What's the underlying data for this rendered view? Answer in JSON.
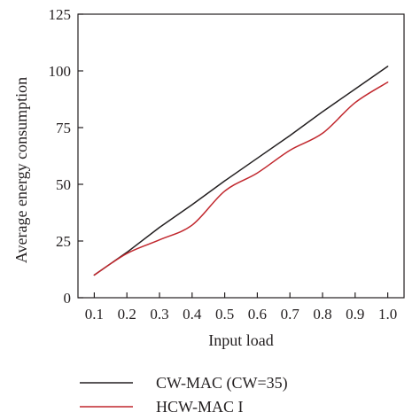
{
  "chart_data": {
    "type": "line",
    "xlabel": "Input load",
    "ylabel": "Average energy consumption",
    "xlim": [
      0.05,
      1.05
    ],
    "ylim": [
      0,
      125
    ],
    "x_ticks": [
      "0.1",
      "0.2",
      "0.3",
      "0.4",
      "0.5",
      "0.6",
      "0.7",
      "0.8",
      "0.9",
      "1.0"
    ],
    "y_ticks": [
      "0",
      "25",
      "50",
      "75",
      "100",
      "125"
    ],
    "grid": false,
    "legend_position": "bottom",
    "series": [
      {
        "name": "CW-MAC (CW=35)",
        "color": "#231f20",
        "x": [
          0.1,
          0.2,
          0.3,
          0.4,
          0.5,
          0.6,
          0.7,
          0.8,
          0.9,
          1.0
        ],
        "y": [
          10,
          20,
          31,
          41,
          51.5,
          61.5,
          71.5,
          82,
          92,
          102
        ]
      },
      {
        "name": "HCW-MAC I",
        "color": "#c1272d",
        "x": [
          0.1,
          0.2,
          0.3,
          0.4,
          0.5,
          0.6,
          0.7,
          0.8,
          0.9,
          1.0
        ],
        "y": [
          10,
          19.5,
          25.5,
          32,
          47,
          55,
          65,
          72.5,
          86,
          95
        ]
      }
    ]
  }
}
